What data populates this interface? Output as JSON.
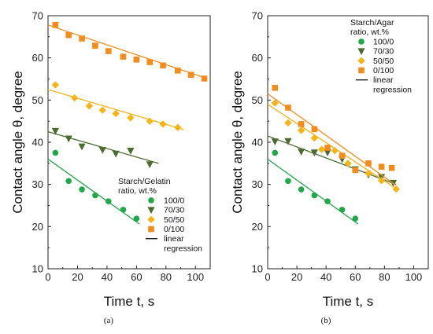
{
  "figure": {
    "panel_labels": [
      "(a)",
      "(b)"
    ]
  },
  "chart_data": [
    {
      "type": "scatter",
      "panel": "(a)",
      "xlabel": "Time t, s",
      "ylabel": "Contact angle θ, degree",
      "xlim": [
        0,
        110
      ],
      "ylim": [
        10,
        70
      ],
      "xticks": [
        0,
        20,
        40,
        60,
        80,
        100
      ],
      "yticks": [
        10,
        20,
        30,
        40,
        50,
        60,
        70
      ],
      "legend": {
        "title_lines": [
          "Starch/Gelatin",
          "ratio, wt.%"
        ],
        "placement": "bottom-right",
        "regression_label_lines": [
          "linear",
          "regression"
        ]
      },
      "series": [
        {
          "name": "100/0",
          "marker": "circle",
          "color": "#22a84a",
          "points": [
            [
              5,
              37.5
            ],
            [
              14,
              30.8
            ],
            [
              23,
              28.8
            ],
            [
              32,
              27.4
            ],
            [
              41,
              26.0
            ],
            [
              51,
              24.0
            ],
            [
              60,
              21.9
            ]
          ],
          "fit": [
            [
              0,
              36.0
            ],
            [
              62,
              20.6
            ]
          ]
        },
        {
          "name": "70/30",
          "marker": "triangle-down",
          "color": "#4c6b30",
          "points": [
            [
              5,
              42.7
            ],
            [
              14,
              40.9
            ],
            [
              23,
              39.0
            ],
            [
              37,
              38.2
            ],
            [
              46,
              37.3
            ],
            [
              56,
              38.0
            ],
            [
              69,
              34.8
            ]
          ],
          "fit": [
            [
              0,
              42.5
            ],
            [
              75,
              35.0
            ]
          ]
        },
        {
          "name": "50/50",
          "marker": "diamond",
          "color": "#f5b51a",
          "points": [
            [
              5,
              53.6
            ],
            [
              18,
              50.5
            ],
            [
              28,
              48.6
            ],
            [
              37,
              47.6
            ],
            [
              46,
              46.8
            ],
            [
              56,
              45.8
            ],
            [
              69,
              45.0
            ],
            [
              78,
              44.3
            ],
            [
              88,
              43.5
            ]
          ],
          "fit": [
            [
              0,
              52.5
            ],
            [
              92,
              43.0
            ]
          ]
        },
        {
          "name": "0/100",
          "marker": "square",
          "color": "#f28c1e",
          "points": [
            [
              5,
              67.8
            ],
            [
              14,
              65.4
            ],
            [
              23,
              64.6
            ],
            [
              32,
              62.9
            ],
            [
              41,
              61.6
            ],
            [
              51,
              60.3
            ],
            [
              60,
              59.6
            ],
            [
              69,
              59.0
            ],
            [
              78,
              58.2
            ],
            [
              88,
              57.0
            ],
            [
              97,
              56.0
            ],
            [
              106,
              55.1
            ]
          ],
          "fit": [
            [
              0,
              67.8
            ],
            [
              108,
              55.1
            ]
          ]
        }
      ]
    },
    {
      "type": "scatter",
      "panel": "(b)",
      "xlabel": "Time t, s",
      "ylabel": "Contact angle θ, degree",
      "xlim": [
        0,
        110
      ],
      "ylim": [
        10,
        70
      ],
      "xticks": [
        0,
        20,
        40,
        60,
        80,
        100
      ],
      "yticks": [
        10,
        20,
        30,
        40,
        50,
        60,
        70
      ],
      "legend": {
        "title_lines": [
          "Starch/Agar",
          "ratio, wt.%"
        ],
        "placement": "top-right",
        "regression_label_lines": [
          "linear",
          "regression"
        ]
      },
      "series": [
        {
          "name": "100/0",
          "marker": "circle",
          "color": "#22a84a",
          "points": [
            [
              5,
              37.5
            ],
            [
              14,
              30.8
            ],
            [
              23,
              28.8
            ],
            [
              32,
              27.4
            ],
            [
              41,
              26.0
            ],
            [
              51,
              24.0
            ],
            [
              60,
              21.9
            ]
          ],
          "fit": [
            [
              0,
              36.0
            ],
            [
              62,
              20.6
            ]
          ]
        },
        {
          "name": "70/30",
          "marker": "triangle-down",
          "color": "#4c6b30",
          "points": [
            [
              5,
              40.2
            ],
            [
              14,
              40.3
            ],
            [
              23,
              37.8
            ],
            [
              32,
              37.6
            ],
            [
              41,
              37.6
            ],
            [
              51,
              36.0
            ],
            [
              60,
              33.6
            ],
            [
              69,
              32.3
            ],
            [
              78,
              31.8
            ],
            [
              86,
              30.4
            ]
          ],
          "fit": [
            [
              0,
              41.5
            ],
            [
              88,
              30.0
            ]
          ]
        },
        {
          "name": "50/50",
          "marker": "diamond",
          "color": "#f5b51a",
          "points": [
            [
              5,
              49.3
            ],
            [
              14,
              44.6
            ],
            [
              23,
              42.8
            ],
            [
              32,
              41.0
            ],
            [
              37,
              38.3
            ],
            [
              46,
              38.0
            ],
            [
              55,
              35.0
            ],
            [
              69,
              32.6
            ],
            [
              78,
              30.9
            ],
            [
              88,
              28.9
            ]
          ],
          "fit": [
            [
              0,
              49.0
            ],
            [
              88,
              29.0
            ]
          ]
        },
        {
          "name": "0/100",
          "marker": "square",
          "color": "#f28c1e",
          "points": [
            [
              5,
              52.9
            ],
            [
              14,
              48.2
            ],
            [
              23,
              44.3
            ],
            [
              32,
              43.1
            ],
            [
              41,
              38.7
            ],
            [
              51,
              36.8
            ],
            [
              60,
              33.4
            ],
            [
              69,
              35.0
            ],
            [
              78,
              34.2
            ],
            [
              85,
              33.9
            ]
          ],
          "fit": [
            [
              0,
              51.5
            ],
            [
              87,
              30.0
            ]
          ]
        }
      ]
    }
  ]
}
